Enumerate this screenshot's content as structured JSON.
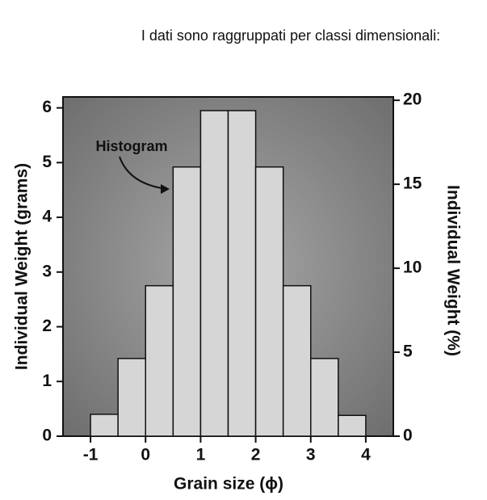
{
  "chart_data": {
    "type": "histogram",
    "title": "I dati sono raggruppati per classi dimensionali:",
    "xlabel": "Grain size (ϕ)",
    "ylabel": "Individual Weight (grams)",
    "y2label": "Individual Weight (%)",
    "annotation": "Histogram",
    "bins": [
      -1,
      -0.5,
      0,
      0.5,
      1,
      1.5,
      2,
      2.5,
      3,
      3.5,
      4
    ],
    "values": [
      0.4,
      1.42,
      2.75,
      4.92,
      5.95,
      5.95,
      4.92,
      2.75,
      1.42,
      0.38
    ],
    "color": "#d6d6d6",
    "xlim": [
      -1.5,
      4.5
    ],
    "xticks": [
      -1,
      0,
      1,
      2,
      3,
      4
    ],
    "ylim": [
      0,
      6.2
    ],
    "yticks": [
      0,
      1,
      2,
      3,
      4,
      5,
      6
    ],
    "y2lim": [
      0,
      20.2
    ],
    "y2ticks": [
      0,
      5,
      10,
      15,
      20
    ]
  }
}
